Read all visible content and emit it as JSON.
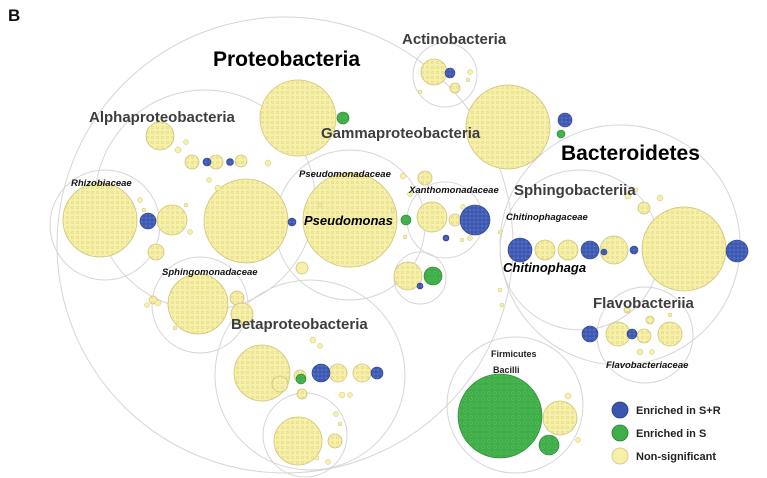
{
  "panel_label": "B",
  "labels": {
    "proteobacteria": "Proteobacteria",
    "actinobacteria": "Actinobacteria",
    "alphaproteobacteria": "Alphaproteobacteria",
    "gammaproteobacteria": "Gammaproteobacteria",
    "bacteroidetes": "Bacteroidetes",
    "rhizobiaceae": "Rhizobiaceae",
    "pseudomonadaceae": "Pseudomonadaceae",
    "xanthomonadaceae": "Xanthomonadaceae",
    "sphingobacteriia": "Sphingobacteriia",
    "pseudomonas": "Pseudomonas",
    "chitinophagaceae": "Chitinophagaceae",
    "chitinophaga": "Chitinophaga",
    "sphingomonadaceae": "Sphingomonadaceae",
    "flavobacteriia": "Flavobacteriia",
    "betaproteobacteria": "Betaproteobacteria",
    "flavobacteriaceae": "Flavobacteriaceae",
    "firmicutes": "Firmicutes",
    "bacilli": "Bacilli"
  },
  "legend": [
    {
      "label": "Enriched in S+R",
      "color": "#3a56b0"
    },
    {
      "label": "Enriched in S",
      "color": "#3fae49"
    },
    {
      "label": "Non-significant",
      "color": "#f7f0a8"
    }
  ],
  "colors": {
    "yellow_fill": "#f7f0a8",
    "yellow_stroke": "#cfc57a",
    "blue_fill": "#3a56b0",
    "green_fill": "#3fae49",
    "outline": "#d4d4d4"
  }
}
